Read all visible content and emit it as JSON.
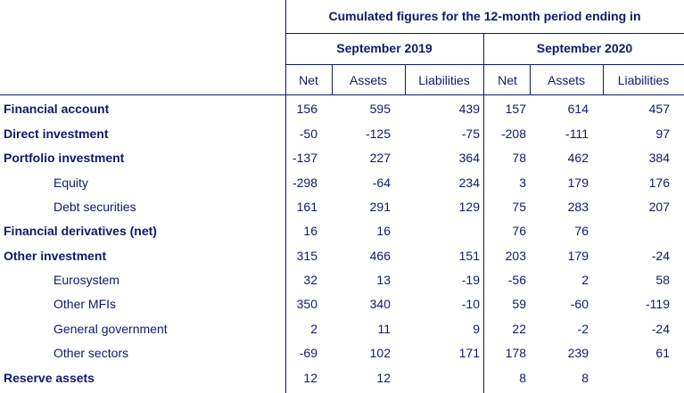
{
  "header": {
    "title": "Cumulated figures for the 12-month period ending in",
    "periods": [
      "September 2019",
      "September 2020"
    ],
    "columns": [
      "Net",
      "Assets",
      "Liabilities",
      "Net",
      "Assets",
      "Liabilities"
    ]
  },
  "rows": [
    {
      "label": "Financial account",
      "bold": true,
      "values": [
        "156",
        "595",
        "439",
        "157",
        "614",
        "457"
      ]
    },
    {
      "label": "Direct investment",
      "bold": true,
      "values": [
        "-50",
        "-125",
        "-75",
        "-208",
        "-111",
        "97"
      ]
    },
    {
      "label": "Portfolio investment",
      "bold": true,
      "values": [
        "-137",
        "227",
        "364",
        "78",
        "462",
        "384"
      ]
    },
    {
      "label": "Equity",
      "bold": false,
      "values": [
        "-298",
        "-64",
        "234",
        "3",
        "179",
        "176"
      ]
    },
    {
      "label": "Debt securities",
      "bold": false,
      "values": [
        "161",
        "291",
        "129",
        "75",
        "283",
        "207"
      ]
    },
    {
      "label": "Financial derivatives (net)",
      "bold": true,
      "values": [
        "16",
        "16",
        "",
        "76",
        "76",
        ""
      ]
    },
    {
      "label": "Other investment",
      "bold": true,
      "values": [
        "315",
        "466",
        "151",
        "203",
        "179",
        "-24"
      ]
    },
    {
      "label": "Eurosystem",
      "bold": false,
      "values": [
        "32",
        "13",
        "-19",
        "-56",
        "2",
        "58"
      ]
    },
    {
      "label": "Other MFIs",
      "bold": false,
      "values": [
        "350",
        "340",
        "-10",
        "59",
        "-60",
        "-119"
      ]
    },
    {
      "label": "General government",
      "bold": false,
      "values": [
        "2",
        "11",
        "9",
        "22",
        "-2",
        "-24"
      ]
    },
    {
      "label": "Other sectors",
      "bold": false,
      "values": [
        "-69",
        "102",
        "171",
        "178",
        "239",
        "61"
      ]
    },
    {
      "label": "Reserve assets",
      "bold": true,
      "values": [
        "12",
        "12",
        "",
        "8",
        "8",
        ""
      ]
    }
  ]
}
